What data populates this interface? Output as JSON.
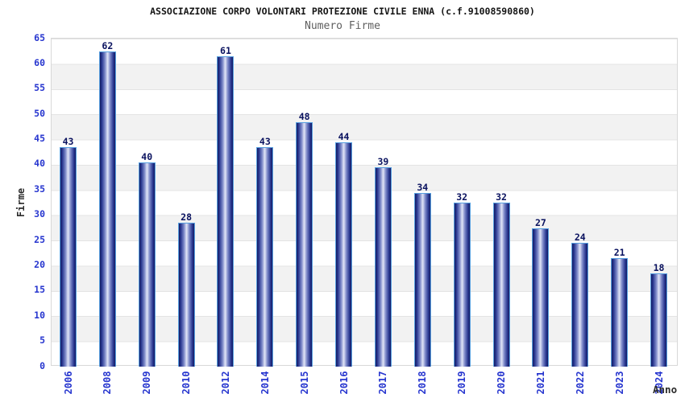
{
  "header": {
    "title": "ASSOCIAZIONE CORPO VOLONTARI PROTEZIONE CIVILE ENNA (c.f.91008590860)",
    "subtitle": "Numero Firme"
  },
  "chart_data": {
    "type": "bar",
    "title": "ASSOCIAZIONE CORPO VOLONTARI PROTEZIONE CIVILE ENNA (c.f.91008590860)",
    "subtitle": "Numero Firme",
    "categories": [
      "2006",
      "2008",
      "2009",
      "2010",
      "2012",
      "2014",
      "2015",
      "2016",
      "2017",
      "2018",
      "2019",
      "2020",
      "2021",
      "2022",
      "2023",
      "2024"
    ],
    "values": [
      43,
      62,
      40,
      28,
      61,
      43,
      48,
      44,
      39,
      34,
      32,
      32,
      27,
      24,
      21,
      18
    ],
    "xlabel": "Anno",
    "ylabel": "Firme",
    "ylim": [
      0,
      65
    ],
    "ytick_step": 5,
    "grid": true,
    "legend": "none",
    "band_stripes": "alternating 5-unit white/gray bands",
    "colors": {
      "tick_label": "#2736cf",
      "value_label": "#0a125f",
      "title": "#151515",
      "subtitle": "#5f5f5f",
      "axis_title": "#2b2b2b",
      "bar_border": "#58a0e0",
      "bar_dark": "#141c63",
      "bar_light": "#e2e6f7",
      "band_gray": "#f2f2f2",
      "grid_line": "#e4e4e4",
      "plot_border": "#d8d8d8",
      "background": "#ffffff"
    }
  }
}
